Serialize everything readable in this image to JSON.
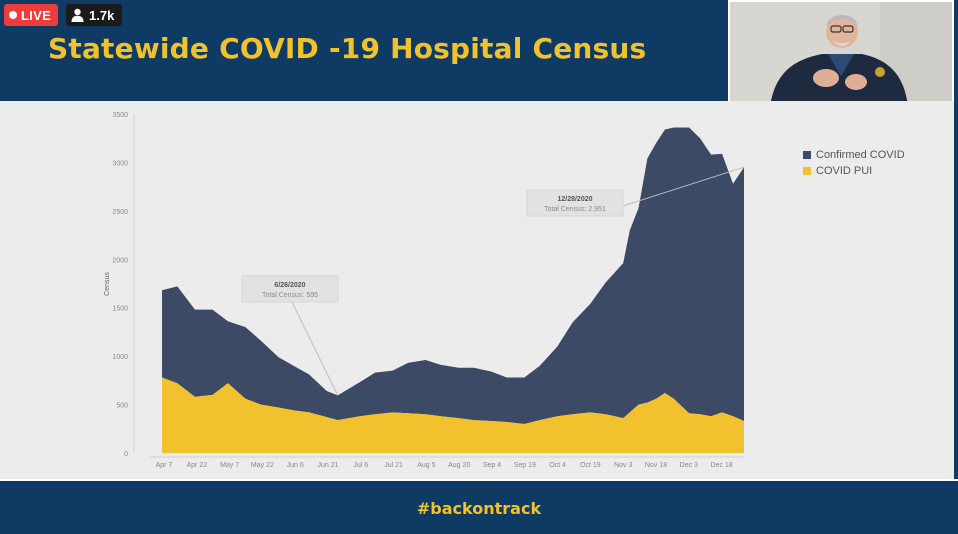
{
  "stream": {
    "live_label": "LIVE",
    "viewer_count": "1.7k"
  },
  "slide": {
    "title": "Statewide COVID -19 Hospital Census",
    "hashtag": "#backontrack"
  },
  "colors": {
    "navy": "#0f3a63",
    "gold": "#f0c22e",
    "confirmed": "#3c4a66",
    "pui": "#f2c12e",
    "live_red": "#ee3b3b"
  },
  "legend": [
    {
      "label": "Confirmed COVID",
      "color": "#3c4a66"
    },
    {
      "label": "COVID PUI",
      "color": "#f2c12e"
    }
  ],
  "chart_data": {
    "type": "area",
    "stacked": true,
    "title": "",
    "xlabel": "",
    "ylabel": "Census",
    "ylim": [
      0,
      3500
    ],
    "yticks": [
      0,
      500,
      1000,
      1500,
      2000,
      2500,
      3000,
      3500
    ],
    "grid": false,
    "legend_position": "top-right",
    "x_tick_labels": [
      "Apr 7",
      "Apr 22",
      "May 7",
      "May 22",
      "Jun 6",
      "Jun 21",
      "Jul 6",
      "Jul 21",
      "Aug 5",
      "Aug 20",
      "Sep 4",
      "Sep 19",
      "Oct 4",
      "Oct 19",
      "Nov 3",
      "Nov 18",
      "Dec 3",
      "Dec 18"
    ],
    "x": [
      "2020-04-07",
      "2020-04-14",
      "2020-04-22",
      "2020-04-30",
      "2020-05-07",
      "2020-05-15",
      "2020-05-22",
      "2020-05-30",
      "2020-06-06",
      "2020-06-13",
      "2020-06-21",
      "2020-06-26",
      "2020-07-06",
      "2020-07-13",
      "2020-07-21",
      "2020-07-28",
      "2020-08-05",
      "2020-08-12",
      "2020-08-20",
      "2020-08-27",
      "2020-09-04",
      "2020-09-11",
      "2020-09-19",
      "2020-09-26",
      "2020-10-04",
      "2020-10-11",
      "2020-10-19",
      "2020-10-26",
      "2020-11-03",
      "2020-11-06",
      "2020-11-10",
      "2020-11-14",
      "2020-11-18",
      "2020-11-22",
      "2020-11-26",
      "2020-12-03",
      "2020-12-08",
      "2020-12-13",
      "2020-12-18",
      "2020-12-23",
      "2020-12-28"
    ],
    "series": [
      {
        "name": "COVID PUI",
        "values": [
          780,
          720,
          580,
          600,
          720,
          560,
          500,
          470,
          440,
          420,
          370,
          340,
          380,
          400,
          420,
          410,
          400,
          380,
          360,
          340,
          330,
          320,
          300,
          340,
          380,
          400,
          420,
          400,
          360,
          420,
          500,
          520,
          560,
          620,
          560,
          410,
          400,
          380,
          420,
          380,
          330
        ]
      },
      {
        "name": "Confirmed COVID",
        "values": [
          900,
          1000,
          900,
          880,
          640,
          740,
          660,
          520,
          460,
          390,
          270,
          255,
          350,
          430,
          430,
          520,
          560,
          530,
          520,
          540,
          510,
          460,
          480,
          560,
          720,
          950,
          1120,
          1360,
          1600,
          1880,
          2030,
          2520,
          2640,
          2720,
          2800,
          2950,
          2850,
          2700,
          2670,
          2400,
          2620
        ]
      }
    ],
    "annotations": [
      {
        "date_label": "6/26/2020",
        "text": "Total Census: 595",
        "x": "2020-06-26",
        "y": 595
      },
      {
        "date_label": "12/28/2020",
        "text": "Total Census: 2,951",
        "x": "2020-12-28",
        "y": 2951
      }
    ]
  }
}
